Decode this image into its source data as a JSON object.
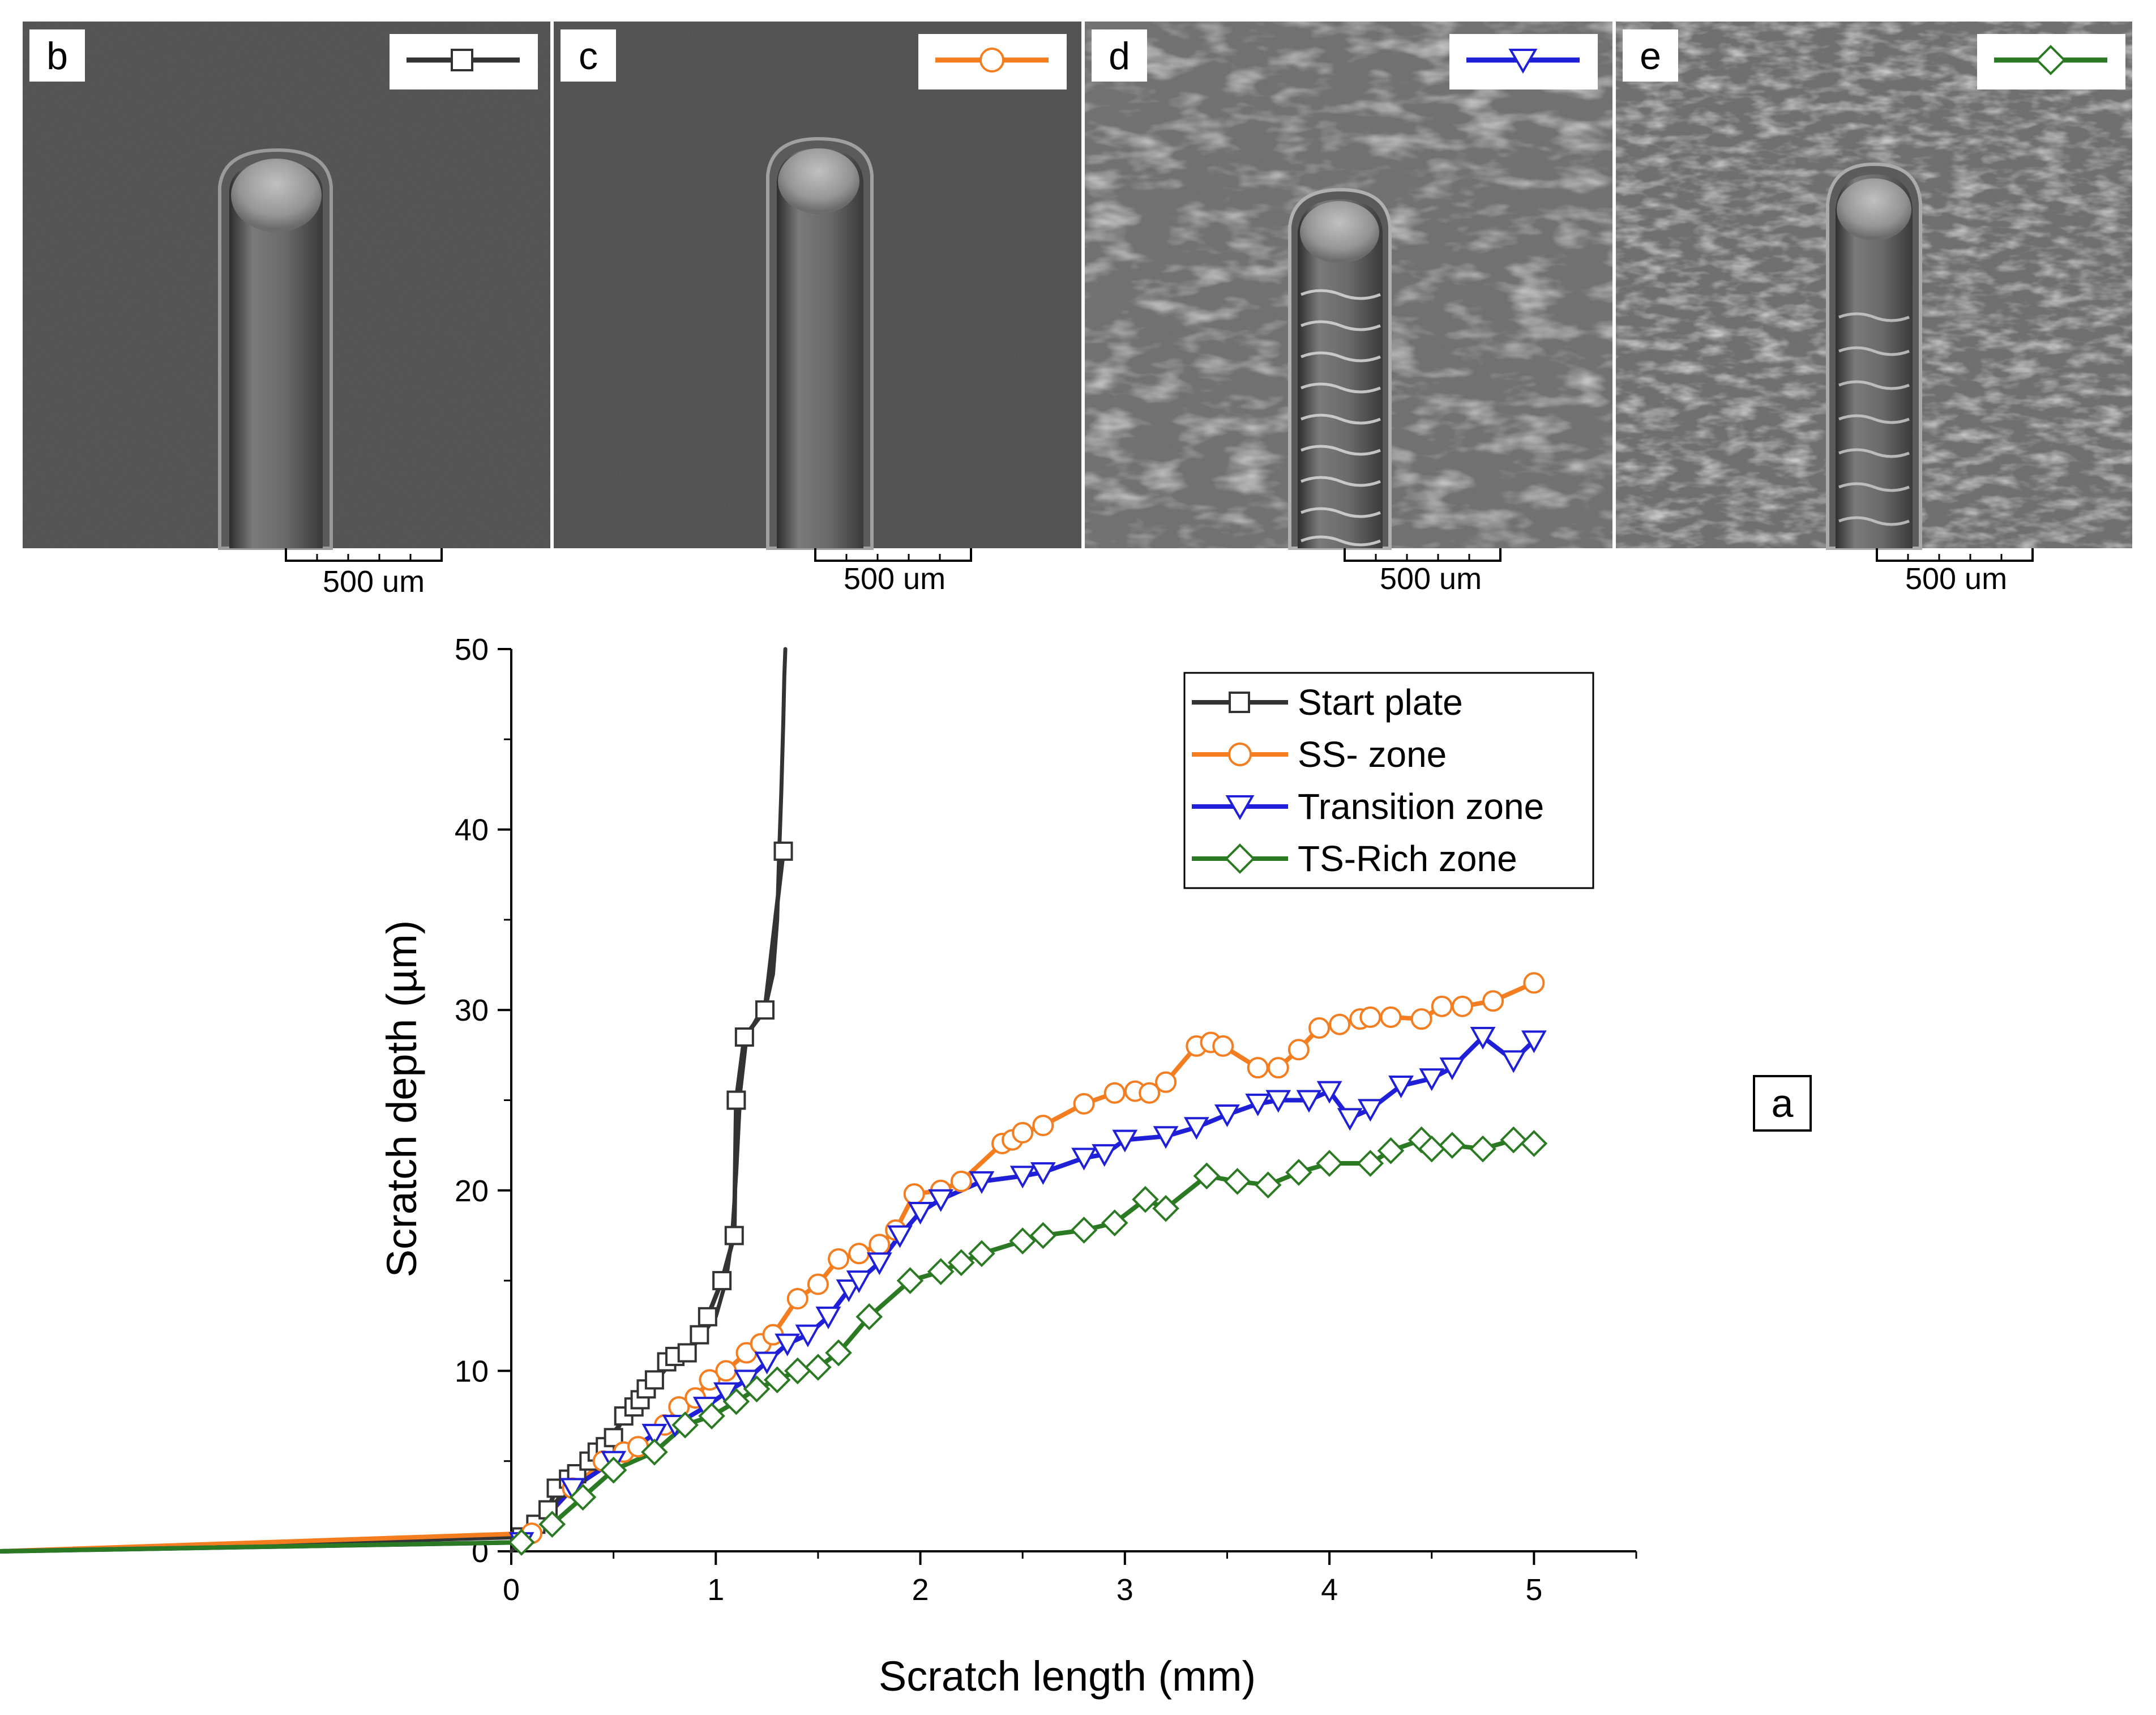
{
  "figure": {
    "panel_tag": "a",
    "sem_panels": [
      {
        "letter": "b",
        "series": "start",
        "scale_label": "500 um"
      },
      {
        "letter": "c",
        "series": "ss",
        "scale_label": "500 um"
      },
      {
        "letter": "d",
        "series": "transition",
        "scale_label": "500 um"
      },
      {
        "letter": "e",
        "series": "ts",
        "scale_label": "500 um"
      }
    ]
  },
  "chart_data": {
    "type": "line",
    "xlabel": "Scratch length (mm)",
    "ylabel": "Scratch depth (µm)",
    "xlim": [
      0,
      5.5
    ],
    "ylim": [
      0,
      50
    ],
    "xticks": [
      "0",
      "1",
      "2",
      "3",
      "4",
      "5"
    ],
    "yticks": [
      "0",
      "10",
      "20",
      "30",
      "40",
      "50"
    ],
    "legend_position": "top-right",
    "series": [
      {
        "id": "start",
        "name": "Start plate",
        "color": "#333333",
        "marker": "square",
        "x": [
          0.05,
          0.12,
          0.18,
          0.22,
          0.28,
          0.32,
          0.38,
          0.42,
          0.46,
          0.5,
          0.55,
          0.6,
          0.63,
          0.66,
          0.7,
          0.76,
          0.8,
          0.86,
          0.92,
          0.96,
          1.03,
          1.09,
          1.1,
          1.14,
          1.24,
          1.33
        ],
        "y": [
          0.8,
          1.5,
          2.3,
          3.5,
          4.0,
          4.3,
          5.0,
          5.5,
          5.8,
          6.3,
          7.5,
          8.0,
          8.4,
          9.0,
          9.5,
          10.5,
          10.8,
          11.0,
          12.0,
          13.0,
          15.0,
          17.5,
          25.0,
          28.5,
          30.0,
          38.8
        ]
      },
      {
        "id": "ss",
        "name": "SS- zone",
        "color": "#f47d20",
        "marker": "circle",
        "x": [
          0.1,
          0.3,
          0.45,
          0.55,
          0.62,
          0.75,
          0.82,
          0.9,
          0.97,
          1.05,
          1.15,
          1.22,
          1.28,
          1.4,
          1.5,
          1.6,
          1.7,
          1.8,
          1.88,
          1.97,
          2.1,
          2.2,
          2.4,
          2.45,
          2.5,
          2.6,
          2.8,
          2.95,
          3.05,
          3.12,
          3.2,
          3.35,
          3.42,
          3.48,
          3.65,
          3.75,
          3.85,
          3.95,
          4.05,
          4.15,
          4.2,
          4.3,
          4.45,
          4.55,
          4.65,
          4.8,
          5.0
        ],
        "y": [
          1.0,
          3.5,
          5.0,
          5.5,
          5.8,
          7.0,
          8.0,
          8.5,
          9.5,
          10.0,
          11.0,
          11.5,
          12.0,
          14.0,
          14.8,
          16.2,
          16.5,
          17.0,
          17.8,
          19.8,
          20.0,
          20.5,
          22.6,
          22.8,
          23.2,
          23.6,
          24.8,
          25.4,
          25.5,
          25.4,
          26.0,
          28.0,
          28.2,
          28.0,
          26.8,
          26.8,
          27.8,
          29.0,
          29.2,
          29.5,
          29.6,
          29.6,
          29.5,
          30.2,
          30.2,
          30.5,
          31.5
        ]
      },
      {
        "id": "transition",
        "name": "Transition zone",
        "color": "#1f1fd8",
        "marker": "triangle-down",
        "x": [
          0.05,
          0.3,
          0.5,
          0.7,
          0.8,
          0.95,
          1.05,
          1.15,
          1.25,
          1.35,
          1.45,
          1.55,
          1.65,
          1.7,
          1.8,
          1.9,
          2.0,
          2.1,
          2.3,
          2.5,
          2.6,
          2.8,
          2.9,
          3.0,
          3.2,
          3.35,
          3.5,
          3.65,
          3.75,
          3.9,
          4.0,
          4.1,
          4.2,
          4.35,
          4.5,
          4.6,
          4.75,
          4.9,
          5.0
        ],
        "y": [
          0.5,
          3.5,
          5.0,
          6.5,
          7.0,
          8.0,
          8.8,
          9.5,
          10.5,
          11.5,
          12.0,
          13.0,
          14.5,
          15.0,
          16.0,
          17.5,
          18.8,
          19.5,
          20.5,
          20.8,
          21.0,
          21.8,
          22.0,
          22.8,
          23.0,
          23.5,
          24.2,
          24.8,
          25.0,
          25.0,
          25.5,
          24.0,
          24.5,
          25.8,
          26.2,
          26.8,
          28.5,
          27.2,
          28.3
        ]
      },
      {
        "id": "ts",
        "name": "TS-Rich zone",
        "color": "#2b7a23",
        "marker": "diamond",
        "x": [
          0.05,
          0.2,
          0.35,
          0.5,
          0.7,
          0.85,
          0.98,
          1.1,
          1.2,
          1.3,
          1.4,
          1.5,
          1.6,
          1.75,
          1.95,
          2.1,
          2.2,
          2.3,
          2.5,
          2.6,
          2.8,
          2.95,
          3.1,
          3.2,
          3.4,
          3.55,
          3.7,
          3.85,
          4.0,
          4.2,
          4.3,
          4.45,
          4.5,
          4.6,
          4.75,
          4.9,
          5.0
        ],
        "y": [
          0.5,
          1.5,
          3.0,
          4.5,
          5.5,
          7.0,
          7.5,
          8.3,
          9.0,
          9.5,
          10.0,
          10.2,
          11.0,
          13.0,
          15.0,
          15.5,
          16.0,
          16.5,
          17.2,
          17.5,
          17.8,
          18.2,
          19.5,
          19.0,
          20.8,
          20.5,
          20.3,
          21.0,
          21.5,
          21.5,
          22.2,
          22.8,
          22.3,
          22.5,
          22.3,
          22.8,
          22.6
        ]
      },
      {
        "id": "start_curve",
        "name": "",
        "color": "#333333",
        "marker": "none",
        "x": [
          0,
          0.2,
          0.4,
          0.6,
          0.8,
          0.9,
          1.0,
          1.05,
          1.08,
          1.1,
          1.12,
          1.15,
          1.2,
          1.25,
          1.28,
          1.3,
          1.31,
          1.32,
          1.33,
          1.335,
          1.34
        ],
        "y": [
          0,
          2.5,
          5.2,
          8.0,
          10.7,
          11.5,
          13.0,
          15.0,
          17.5,
          21.0,
          25.5,
          28.5,
          29.5,
          30.5,
          32.0,
          35.0,
          38.8,
          42.0,
          46.0,
          48.5,
          50.0
        ]
      }
    ]
  }
}
